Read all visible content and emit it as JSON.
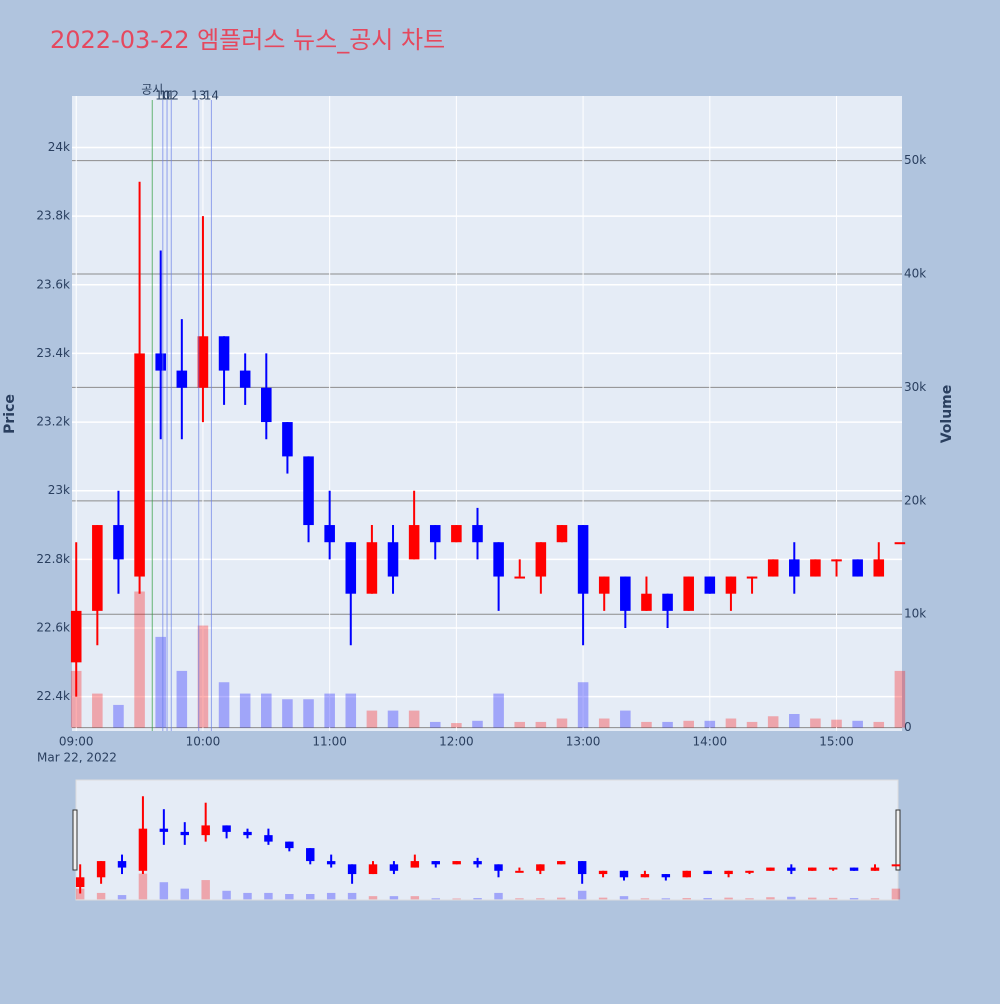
{
  "chart_data": {
    "type": "candlestick",
    "title": "2022-03-22 엠플러스 뉴스_공시 차트",
    "y_label": "Price",
    "y2_label": "Volume",
    "x_date_label": "Mar 22, 2022",
    "x": [
      "09:00",
      "09:10",
      "09:20",
      "09:30",
      "09:40",
      "09:50",
      "10:00",
      "10:10",
      "10:20",
      "10:30",
      "10:40",
      "10:50",
      "11:00",
      "11:10",
      "11:20",
      "11:30",
      "11:40",
      "11:50",
      "12:00",
      "12:10",
      "12:20",
      "12:30",
      "12:40",
      "12:50",
      "13:00",
      "13:10",
      "13:20",
      "13:30",
      "13:40",
      "13:50",
      "14:00",
      "14:10",
      "14:20",
      "14:30",
      "14:40",
      "14:50",
      "15:00",
      "15:10",
      "15:20",
      "15:30"
    ],
    "open": [
      22500,
      22650,
      22900,
      22750,
      23400,
      23350,
      23300,
      23450,
      23350,
      23300,
      23200,
      23100,
      22900,
      22850,
      22700,
      22850,
      22800,
      22900,
      22850,
      22900,
      22850,
      22750,
      22750,
      22850,
      22900,
      22700,
      22750,
      22650,
      22700,
      22650,
      22750,
      22700,
      22750,
      22750,
      22800,
      22750,
      22800,
      22800,
      22750,
      22850
    ],
    "high": [
      22850,
      22900,
      23000,
      23900,
      23700,
      23500,
      23800,
      23450,
      23400,
      23400,
      23200,
      23100,
      23000,
      22850,
      22900,
      22900,
      23000,
      22900,
      22900,
      22950,
      22850,
      22800,
      22850,
      22900,
      22900,
      22750,
      22750,
      22750,
      22700,
      22750,
      22750,
      22750,
      22750,
      22800,
      22850,
      22800,
      22800,
      22800,
      22850,
      22850
    ],
    "low": [
      22400,
      22550,
      22700,
      22700,
      23150,
      23150,
      23200,
      23250,
      23250,
      23150,
      23050,
      22850,
      22800,
      22550,
      22700,
      22700,
      22800,
      22800,
      22850,
      22800,
      22650,
      22750,
      22700,
      22850,
      22550,
      22650,
      22600,
      22650,
      22600,
      22650,
      22700,
      22650,
      22700,
      22750,
      22700,
      22750,
      22750,
      22750,
      22750,
      22850
    ],
    "close": [
      22650,
      22900,
      22800,
      23400,
      23350,
      23300,
      23450,
      23350,
      23300,
      23200,
      23100,
      22900,
      22850,
      22700,
      22850,
      22750,
      22900,
      22850,
      22900,
      22850,
      22750,
      22750,
      22850,
      22900,
      22700,
      22750,
      22650,
      22700,
      22650,
      22750,
      22700,
      22750,
      22750,
      22800,
      22750,
      22800,
      22800,
      22750,
      22800,
      22850
    ],
    "volume": [
      5000,
      3000,
      2000,
      12000,
      8000,
      5000,
      9000,
      4000,
      3000,
      3000,
      2500,
      2500,
      3000,
      3000,
      1500,
      1500,
      1500,
      500,
      400,
      600,
      3000,
      500,
      500,
      800,
      4000,
      800,
      1500,
      500,
      500,
      600,
      600,
      800,
      500,
      1000,
      1200,
      800,
      700,
      600,
      500,
      5000
    ],
    "increasing_color": "#ff0000",
    "decreasing_color": "#0000ff",
    "xlim": [
      "08:58",
      "15:31"
    ],
    "xticks": [
      "09:00",
      "10:00",
      "11:00",
      "12:00",
      "13:00",
      "14:00",
      "15:00"
    ],
    "ylim": [
      22300,
      24150
    ],
    "yticks": [
      {
        "value": 22400,
        "label": "22.4k"
      },
      {
        "value": 22600,
        "label": "22.6k"
      },
      {
        "value": 22800,
        "label": "22.8k"
      },
      {
        "value": 23000,
        "label": "23k"
      },
      {
        "value": 23200,
        "label": "23.2k"
      },
      {
        "value": 23400,
        "label": "23.4k"
      },
      {
        "value": 23600,
        "label": "23.6k"
      },
      {
        "value": 23800,
        "label": "23.8k"
      },
      {
        "value": 24000,
        "label": "24k"
      }
    ],
    "y2lim": [
      -300,
      55700
    ],
    "y2ticks": [
      0,
      {
        "value": 10000,
        "label": "10k"
      },
      {
        "value": 20000,
        "label": "20k"
      },
      {
        "value": 30000,
        "label": "30k"
      },
      {
        "value": 40000,
        "label": "40k"
      },
      {
        "value": 50000,
        "label": "50k"
      }
    ],
    "annotations": [
      {
        "x": "09:36",
        "label": "공시",
        "color": "#2e9e3e"
      },
      {
        "x": "09:41",
        "label": "10",
        "color": "#6a7fe8"
      },
      {
        "x": "09:43",
        "label": "11",
        "color": "#6a7fe8"
      },
      {
        "x": "09:45",
        "label": "12",
        "color": "#6a7fe8"
      },
      {
        "x": "09:58",
        "label": "13",
        "color": "#6a7fe8"
      },
      {
        "x": "10:04",
        "label": "14",
        "color": "#6a7fe8"
      }
    ],
    "grid": true,
    "range_slider": true
  }
}
